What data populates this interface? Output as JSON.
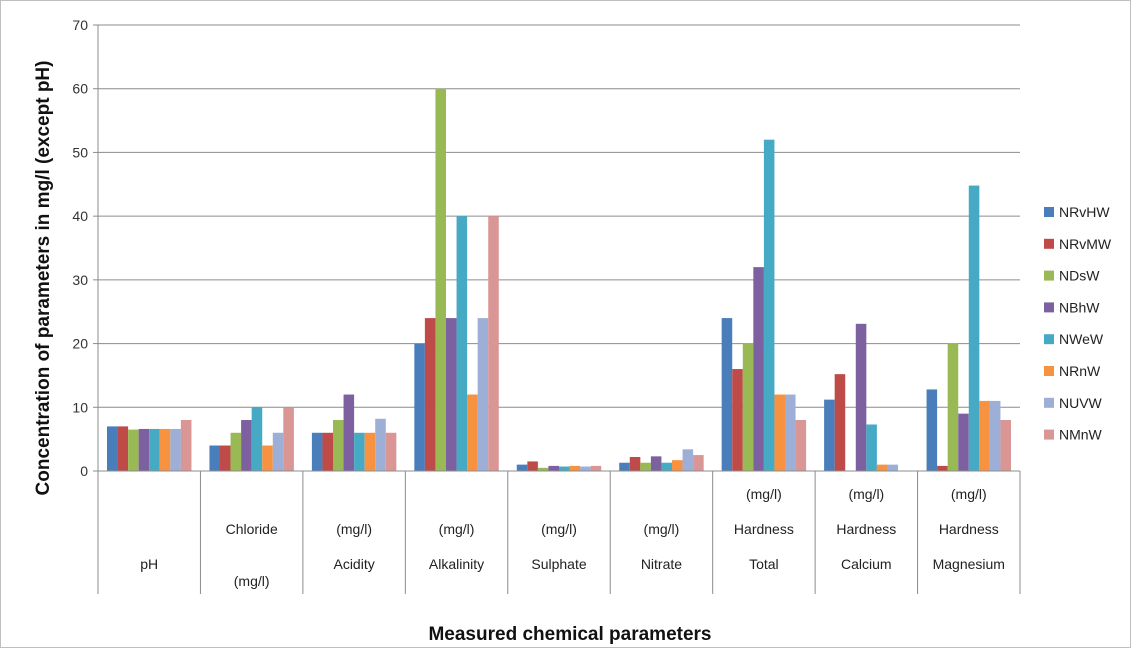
{
  "chart_data": {
    "type": "bar",
    "ylabel": "Concentration of parameters in mg/l (except pH)",
    "xlabel": "Measured chemical parameters",
    "ylim": [
      0,
      70
    ],
    "ytick_step": 10,
    "grid": true,
    "legend_position": "right",
    "categories": [
      [
        "pH"
      ],
      [
        "Chloride",
        "(mg/l)"
      ],
      [
        "(mg/l)",
        "Acidity"
      ],
      [
        "(mg/l)",
        "Alkalinity"
      ],
      [
        "(mg/l)",
        "Sulphate"
      ],
      [
        "(mg/l)",
        "Nitrate"
      ],
      [
        "(mg/l)",
        "Hardness",
        "Total"
      ],
      [
        "(mg/l)",
        "Hardness",
        "Calcium"
      ],
      [
        "(mg/l)",
        "Hardness",
        "Magnesium"
      ]
    ],
    "series": [
      {
        "name": "NRvHW",
        "color": "#4a7ebb",
        "values": [
          7,
          4,
          6,
          20,
          1,
          1.3,
          24,
          11.2,
          12.8
        ]
      },
      {
        "name": "NRvMW",
        "color": "#be4b48",
        "values": [
          7,
          4,
          6,
          24,
          1.5,
          2.2,
          16,
          15.2,
          0.8
        ]
      },
      {
        "name": "NDsW",
        "color": "#98b954",
        "values": [
          6.5,
          6,
          8,
          60,
          0.5,
          1.3,
          20,
          0,
          20
        ]
      },
      {
        "name": "NBhW",
        "color": "#7d60a0",
        "values": [
          6.6,
          8,
          12,
          24,
          0.8,
          2.3,
          32,
          23.1,
          9
        ]
      },
      {
        "name": "NWeW",
        "color": "#46aac5",
        "values": [
          6.6,
          10,
          6,
          40,
          0.7,
          1.3,
          52,
          7.3,
          44.8
        ]
      },
      {
        "name": "NRnW",
        "color": "#f69240",
        "values": [
          6.6,
          4,
          6,
          12,
          0.8,
          1.7,
          12,
          1,
          11
        ]
      },
      {
        "name": "NUVW",
        "color": "#9dafd6",
        "values": [
          6.6,
          6,
          8.2,
          24,
          0.7,
          3.4,
          12,
          1,
          11
        ]
      },
      {
        "name": "NMnW",
        "color": "#d99694",
        "values": [
          8,
          10,
          6,
          40,
          0.8,
          2.5,
          8,
          0,
          8
        ]
      }
    ]
  }
}
